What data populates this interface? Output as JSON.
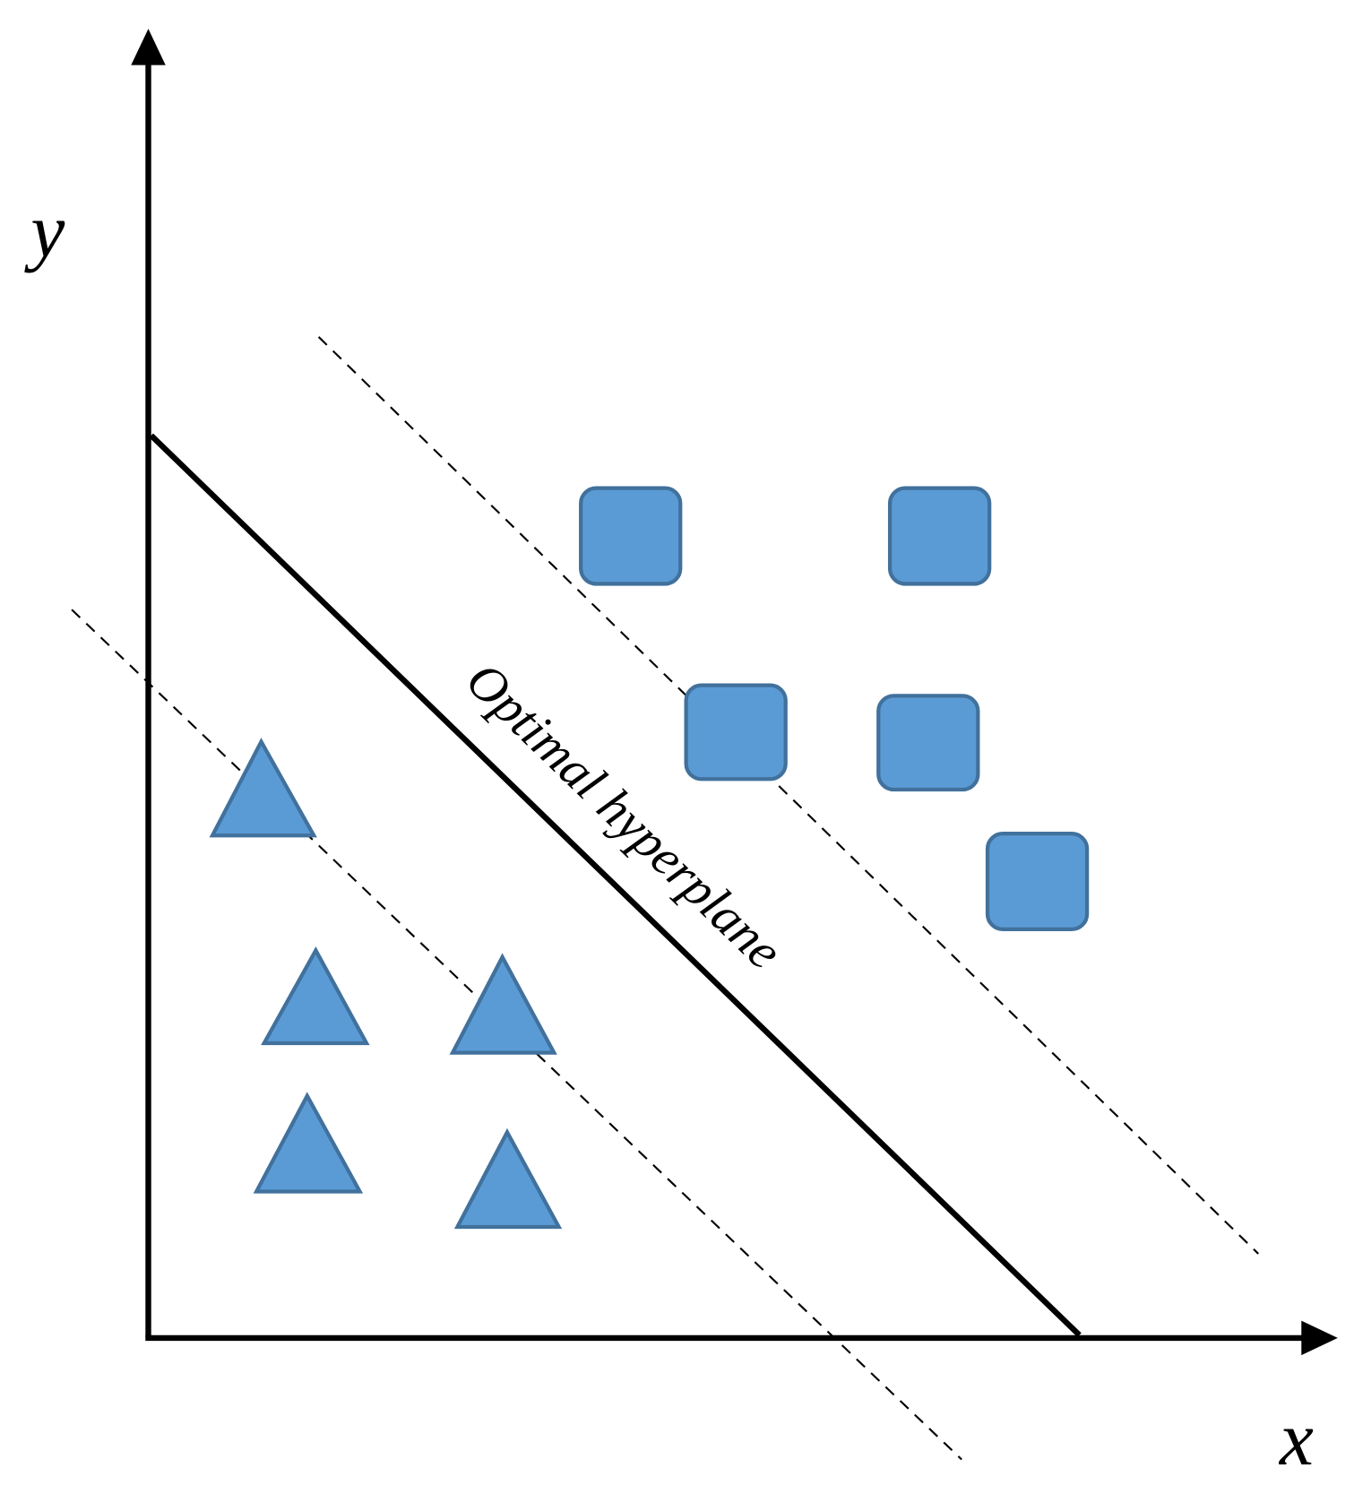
{
  "axes": {
    "y_label": "y",
    "x_label": "x"
  },
  "hyperplane": {
    "label": "Optimal hyperplane"
  }
}
